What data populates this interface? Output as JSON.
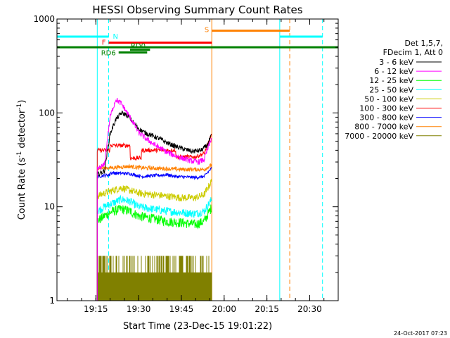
{
  "chart_data": {
    "type": "line",
    "title": "HESSI Observing Summary Count Rates",
    "xlabel": "Start Time (23-Dec-15 19:01:22)",
    "ylabel_main": "Count Rate (s",
    "ylabel_sup1": "-1",
    "ylabel_mid": " detector",
    "ylabel_sup2": "-1",
    "ylabel_end": ")",
    "x_axis": {
      "start": "19:01:22",
      "end": "20:40:00",
      "ticks": [
        {
          "label": "19:15",
          "t": "19:15"
        },
        {
          "label": "19:30",
          "t": "19:30"
        },
        {
          "label": "19:45",
          "t": "19:45"
        },
        {
          "label": "20:00",
          "t": "20:00"
        },
        {
          "label": "20:15",
          "t": "20:15"
        },
        {
          "label": "20:30",
          "t": "20:30"
        }
      ]
    },
    "y_axis": {
      "scale": "log",
      "range": [
        1,
        1000
      ],
      "ticks": [
        {
          "label": "1",
          "value": 1
        },
        {
          "label": "10",
          "value": 10
        },
        {
          "label": "100",
          "value": 100
        },
        {
          "label": "1000",
          "value": 1000
        }
      ]
    },
    "legend": {
      "position": "right",
      "header1": "Det 1,5,7,",
      "header2": "FDecim 1, Att 0"
    },
    "data_start": "19:15:30",
    "data_end": "19:55:40",
    "series": [
      {
        "name": "3 - 6 keV",
        "color": "#000000",
        "noise": 0.06,
        "points": [
          [
            "19:15:30",
            22
          ],
          [
            "19:18:00",
            24
          ],
          [
            "19:20:00",
            60
          ],
          [
            "19:22:00",
            85
          ],
          [
            "19:24:00",
            100
          ],
          [
            "19:26:00",
            95
          ],
          [
            "19:28:00",
            80
          ],
          [
            "19:30:00",
            68
          ],
          [
            "19:32:00",
            62
          ],
          [
            "19:35:00",
            57
          ],
          [
            "19:38:00",
            52
          ],
          [
            "19:40:00",
            48
          ],
          [
            "19:43:00",
            44
          ],
          [
            "19:46:00",
            41
          ],
          [
            "19:49:00",
            39
          ],
          [
            "19:52:00",
            40
          ],
          [
            "19:54:00",
            45
          ],
          [
            "19:55:40",
            58
          ]
        ]
      },
      {
        "name": "6 - 12 keV",
        "color": "#ff00ff",
        "noise": 0.07,
        "points": [
          [
            "19:15:30",
            25
          ],
          [
            "19:18:00",
            28
          ],
          [
            "19:20:00",
            90
          ],
          [
            "19:22:00",
            140
          ],
          [
            "19:24:00",
            125
          ],
          [
            "19:26:00",
            100
          ],
          [
            "19:28:00",
            80
          ],
          [
            "19:30:00",
            62
          ],
          [
            "19:33:00",
            52
          ],
          [
            "19:36:00",
            45
          ],
          [
            "19:40:00",
            38
          ],
          [
            "19:44:00",
            34
          ],
          [
            "19:48:00",
            31
          ],
          [
            "19:51:00",
            30
          ],
          [
            "19:53:00",
            32
          ],
          [
            "19:55:40",
            55
          ]
        ]
      },
      {
        "name": "12 - 25 keV",
        "color": "#00ff00",
        "noise": 0.12,
        "points": [
          [
            "19:15:30",
            7
          ],
          [
            "19:18:00",
            8
          ],
          [
            "19:21:00",
            9
          ],
          [
            "19:24:00",
            9.5
          ],
          [
            "19:27:00",
            9
          ],
          [
            "19:30:00",
            8
          ],
          [
            "19:35:00",
            7.5
          ],
          [
            "19:40:00",
            7
          ],
          [
            "19:45:00",
            6.8
          ],
          [
            "19:50:00",
            6.5
          ],
          [
            "19:53:00",
            7
          ],
          [
            "19:55:40",
            10
          ]
        ]
      },
      {
        "name": "25 - 50 keV",
        "color": "#00ffff",
        "noise": 0.1,
        "points": [
          [
            "19:15:30",
            9
          ],
          [
            "19:18:00",
            10
          ],
          [
            "19:21:00",
            11
          ],
          [
            "19:24:00",
            12
          ],
          [
            "19:27:00",
            11.5
          ],
          [
            "19:30:00",
            10
          ],
          [
            "19:35:00",
            9.5
          ],
          [
            "19:40:00",
            9
          ],
          [
            "19:45:00",
            8.7
          ],
          [
            "19:50:00",
            8.5
          ],
          [
            "19:53:00",
            9
          ],
          [
            "19:55:40",
            12
          ]
        ]
      },
      {
        "name": "50 - 100 keV",
        "color": "#cccc00",
        "noise": 0.09,
        "points": [
          [
            "19:15:30",
            13
          ],
          [
            "19:18:00",
            14
          ],
          [
            "19:21:00",
            15
          ],
          [
            "19:24:00",
            16
          ],
          [
            "19:27:00",
            15
          ],
          [
            "19:30:00",
            14
          ],
          [
            "19:35:00",
            13.5
          ],
          [
            "19:40:00",
            13
          ],
          [
            "19:45:00",
            12.5
          ],
          [
            "19:50:00",
            12.5
          ],
          [
            "19:53:00",
            13.5
          ],
          [
            "19:55:40",
            19
          ]
        ]
      },
      {
        "name": "100 - 300 keV",
        "color": "#ff0000",
        "noise": 0.05,
        "points": [
          [
            "19:15:30",
            40
          ],
          [
            "19:20:00",
            40
          ],
          [
            "19:20:01",
            45
          ],
          [
            "19:27:00",
            45
          ],
          [
            "19:27:01",
            33
          ],
          [
            "19:31:00",
            33
          ],
          [
            "19:31:01",
            40
          ],
          [
            "19:43:00",
            40
          ],
          [
            "19:43:01",
            34
          ],
          [
            "19:50:00",
            34
          ],
          [
            "19:53:00",
            37
          ],
          [
            "19:55:40",
            60
          ]
        ]
      },
      {
        "name": "300 - 800 keV",
        "color": "#0000ff",
        "noise": 0.04,
        "points": [
          [
            "19:15:30",
            21
          ],
          [
            "19:20:00",
            22
          ],
          [
            "19:20:01",
            23
          ],
          [
            "19:27:00",
            22.5
          ],
          [
            "19:31:00",
            21
          ],
          [
            "19:40:00",
            22
          ],
          [
            "19:43:00",
            21
          ],
          [
            "19:50:00",
            20.5
          ],
          [
            "19:53:00",
            21
          ],
          [
            "19:55:40",
            26
          ]
        ]
      },
      {
        "name": "800 - 7000 keV",
        "color": "#ff8000",
        "noise": 0.05,
        "points": [
          [
            "19:15:30",
            26
          ],
          [
            "19:20:00",
            26
          ],
          [
            "19:27:00",
            27
          ],
          [
            "19:31:00",
            26
          ],
          [
            "19:40:00",
            25.5
          ],
          [
            "19:45:00",
            25
          ],
          [
            "19:50:00",
            25
          ],
          [
            "19:53:00",
            25
          ],
          [
            "19:55:40",
            28
          ]
        ]
      },
      {
        "name": "7000 - 20000 keV",
        "color": "#808000",
        "noise": 0,
        "points": [
          [
            "19:15:30",
            2
          ],
          [
            "19:55:40",
            2
          ]
        ]
      }
    ],
    "annotations": {
      "night_bars": [
        {
          "label": "N",
          "from": "19:01:22",
          "to": "19:19:30",
          "y": 650,
          "color": "#00ffff"
        },
        {
          "label": "",
          "from": "20:19:30",
          "to": "20:34:30",
          "y": 650,
          "color": "#00ffff"
        }
      ],
      "saa_bar": {
        "label": "S",
        "from": "19:55:40",
        "to": "20:23:00",
        "y": 750,
        "color": "#ff8000"
      },
      "flare_bar": {
        "label": "F",
        "from": "19:19:30",
        "to": "19:55:40",
        "y": 560,
        "color": "#ff0000"
      },
      "green_bar": {
        "from": "19:01:22",
        "to": "20:40:00",
        "y": 500,
        "color": "#008000"
      },
      "rd0_bar": {
        "label": "RD0",
        "from": "19:27:00",
        "to": "19:34:00",
        "y": 470,
        "color": "#008000"
      },
      "rd6_bar": {
        "label": "RD6",
        "from": "19:23:00",
        "to": "19:33:00",
        "y": 440,
        "color": "#008000"
      },
      "cyan_solid_lines": [
        "19:15:30",
        "20:19:30"
      ],
      "cyan_dashed_lines": [
        "19:19:30",
        "20:34:30"
      ],
      "orange_solid_lines": [
        "19:55:40"
      ],
      "orange_dashed_lines": [
        "20:23:00"
      ]
    }
  },
  "footer": {
    "timestamp": "24-Oct-2017 07:23"
  }
}
